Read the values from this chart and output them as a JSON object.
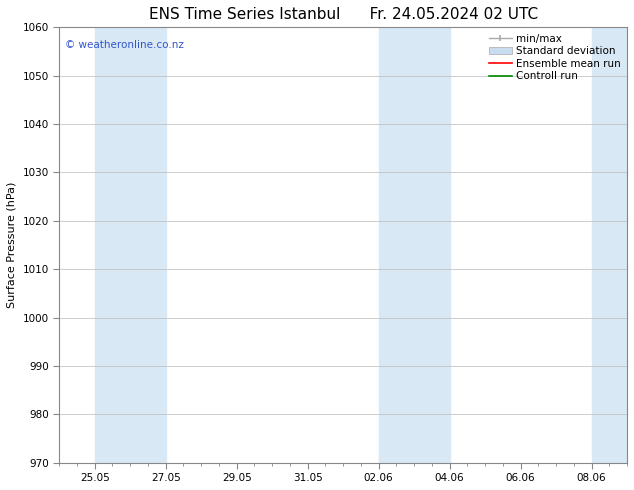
{
  "title": "ENS Time Series Istanbul",
  "title2": "Fr. 24.05.2024 02 UTC",
  "ylabel": "Surface Pressure (hPa)",
  "ylim": [
    970,
    1060
  ],
  "yticks": [
    970,
    980,
    990,
    1000,
    1010,
    1020,
    1030,
    1040,
    1050,
    1060
  ],
  "xlim": [
    0,
    16
  ],
  "xtick_labels": [
    "25.05",
    "27.05",
    "29.05",
    "31.05",
    "02.06",
    "04.06",
    "06.06",
    "08.06"
  ],
  "xtick_positions": [
    1,
    3,
    5,
    7,
    9,
    11,
    13,
    15
  ],
  "shaded_bands": [
    {
      "x_start": 1,
      "x_end": 3,
      "color": "#d8e8f5"
    },
    {
      "x_start": 9,
      "x_end": 11,
      "color": "#d8e8f5"
    },
    {
      "x_start": 15,
      "x_end": 16,
      "color": "#d8e8f5"
    }
  ],
  "watermark_text": "© weatheronline.co.nz",
  "watermark_color": "#3355cc",
  "background_color": "#ffffff",
  "plot_bg_color": "#ffffff",
  "grid_color": "#bbbbbb",
  "minmax_color": "#aaaaaa",
  "stddev_color": "#c8ddf0",
  "ensemble_color": "#ff0000",
  "control_color": "#008800",
  "title_fontsize": 11,
  "axis_label_fontsize": 8,
  "tick_fontsize": 7.5,
  "legend_fontsize": 7.5,
  "watermark_fontsize": 7.5
}
